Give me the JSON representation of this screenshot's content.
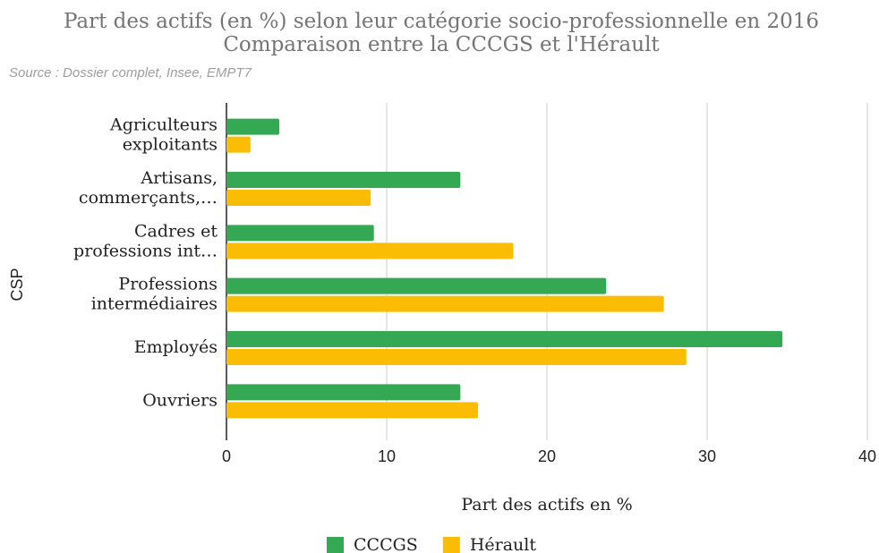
{
  "chart_data": {
    "type": "hbar",
    "title": [
      "Part des actifs (en %) selon leur catégorie socio-professionnelle en 2016",
      "Comparaison entre la CCCGS et l'Hérault"
    ],
    "subtitle": "Source : Dossier complet, Insee, EMPT7",
    "x_label": "Part des actifs en %",
    "y_label": "CSP",
    "categories": [
      [
        "Agriculteurs",
        "exploitants"
      ],
      [
        "Artisans,",
        "commerçants,…"
      ],
      [
        "Cadres et",
        "professions int…"
      ],
      [
        "Professions",
        "intermédiaires"
      ],
      [
        "Employés"
      ],
      [
        "Ouvriers"
      ]
    ],
    "series": [
      {
        "name": "CCCGS",
        "color": "#34a853",
        "values": [
          3.3,
          14.6,
          9.2,
          23.7,
          34.7,
          14.6
        ]
      },
      {
        "name": "Hérault",
        "color": "#fbbc04",
        "values": [
          1.5,
          9.0,
          17.9,
          27.3,
          28.7,
          15.7
        ]
      }
    ],
    "xlim": [
      0,
      40
    ],
    "xticks": [
      0,
      10,
      20,
      30,
      40
    ],
    "grid": true,
    "legend": "bottom"
  }
}
